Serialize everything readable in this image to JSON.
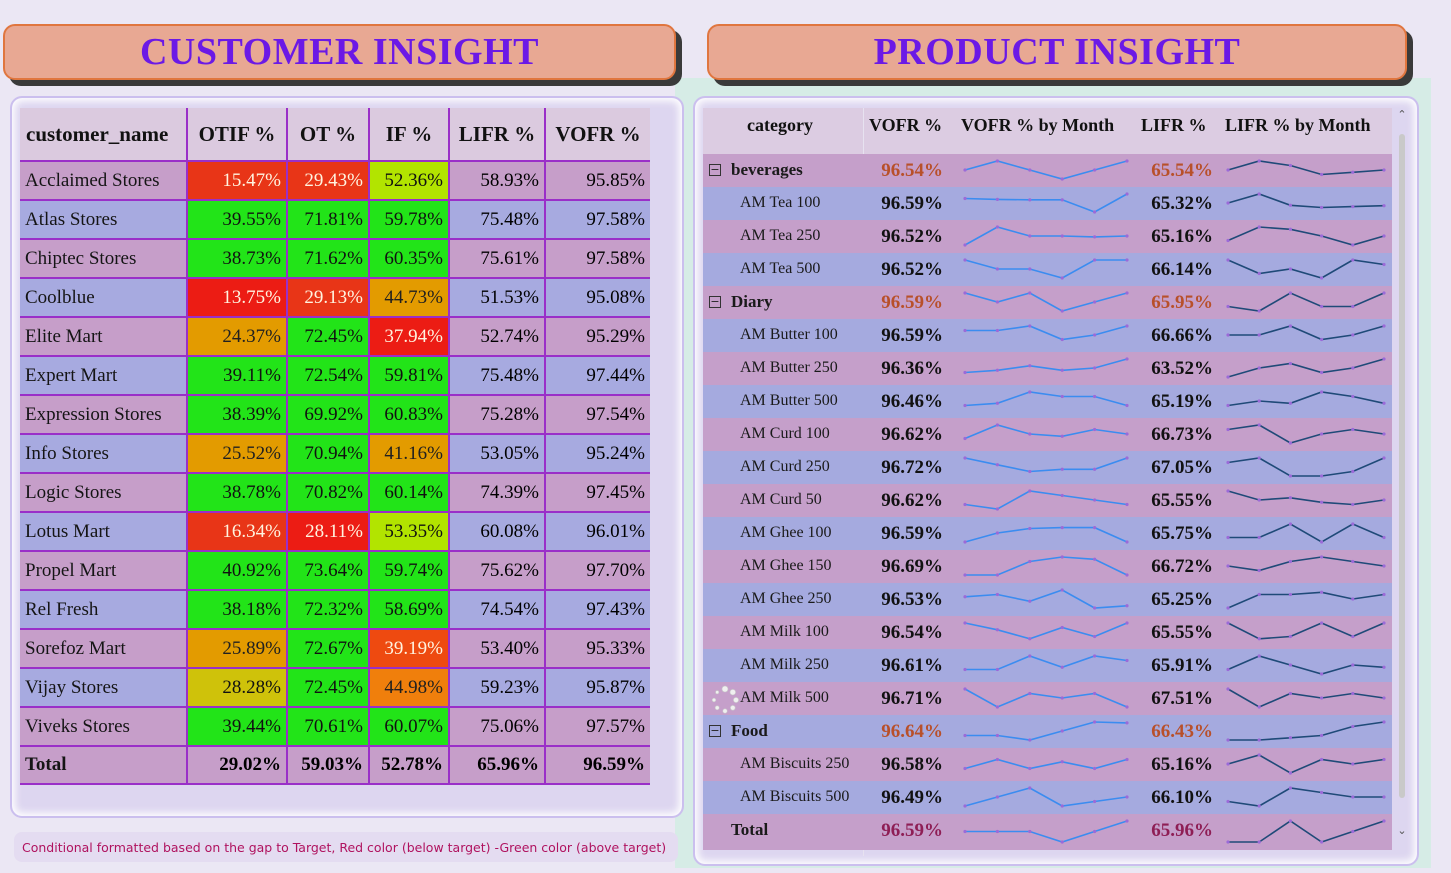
{
  "banners": {
    "customer": "CUSTOMER INSIGHT",
    "product": "PRODUCT INSIGHT"
  },
  "customer_table": {
    "headers": [
      "customer_name",
      "OTIF %",
      "OT %",
      "IF %",
      "LIFR %",
      "VOFR %"
    ],
    "rows": [
      {
        "name": "Acclaimed Stores",
        "otif": "15.47%",
        "ot": "29.43%",
        "if": "52.36%",
        "lifr": "58.93%",
        "vofr": "95.85%"
      },
      {
        "name": "Atlas Stores",
        "otif": "39.55%",
        "ot": "71.81%",
        "if": "59.78%",
        "lifr": "75.48%",
        "vofr": "97.58%"
      },
      {
        "name": "Chiptec Stores",
        "otif": "38.73%",
        "ot": "71.62%",
        "if": "60.35%",
        "lifr": "75.61%",
        "vofr": "97.58%"
      },
      {
        "name": "Coolblue",
        "otif": "13.75%",
        "ot": "29.13%",
        "if": "44.73%",
        "lifr": "51.53%",
        "vofr": "95.08%"
      },
      {
        "name": "Elite Mart",
        "otif": "24.37%",
        "ot": "72.45%",
        "if": "37.94%",
        "lifr": "52.74%",
        "vofr": "95.29%"
      },
      {
        "name": "Expert Mart",
        "otif": "39.11%",
        "ot": "72.54%",
        "if": "59.81%",
        "lifr": "75.48%",
        "vofr": "97.44%"
      },
      {
        "name": "Expression Stores",
        "otif": "38.39%",
        "ot": "69.92%",
        "if": "60.83%",
        "lifr": "75.28%",
        "vofr": "97.54%"
      },
      {
        "name": "Info Stores",
        "otif": "25.52%",
        "ot": "70.94%",
        "if": "41.16%",
        "lifr": "53.05%",
        "vofr": "95.24%"
      },
      {
        "name": "Logic Stores",
        "otif": "38.78%",
        "ot": "70.82%",
        "if": "60.14%",
        "lifr": "74.39%",
        "vofr": "97.45%"
      },
      {
        "name": "Lotus Mart",
        "otif": "16.34%",
        "ot": "28.11%",
        "if": "53.35%",
        "lifr": "60.08%",
        "vofr": "96.01%"
      },
      {
        "name": "Propel Mart",
        "otif": "40.92%",
        "ot": "73.64%",
        "if": "59.74%",
        "lifr": "75.62%",
        "vofr": "97.70%"
      },
      {
        "name": "Rel Fresh",
        "otif": "38.18%",
        "ot": "72.32%",
        "if": "58.69%",
        "lifr": "74.54%",
        "vofr": "97.43%"
      },
      {
        "name": "Sorefoz Mart",
        "otif": "25.89%",
        "ot": "72.67%",
        "if": "39.19%",
        "lifr": "53.40%",
        "vofr": "95.33%"
      },
      {
        "name": "Vijay Stores",
        "otif": "28.28%",
        "ot": "72.45%",
        "if": "44.98%",
        "lifr": "59.23%",
        "vofr": "95.87%"
      },
      {
        "name": "Viveks Stores",
        "otif": "39.44%",
        "ot": "70.61%",
        "if": "60.07%",
        "lifr": "75.06%",
        "vofr": "97.57%"
      }
    ],
    "total": {
      "name": "Total",
      "otif": "29.02%",
      "ot": "59.03%",
      "if": "52.78%",
      "lifr": "65.96%",
      "vofr": "96.59%"
    }
  },
  "footnote": "Conditional formatted based on the gap to Target, Red color (below target) -Green color (above target)",
  "product_matrix": {
    "headers": [
      "category",
      "VOFR %",
      "VOFR % by Month",
      "LIFR %",
      "LIFR % by Month"
    ],
    "rows": [
      {
        "type": "cat",
        "label": "beverages",
        "vofr": "96.54%",
        "lifr": "65.54%",
        "sv": [
          3,
          5,
          3,
          1,
          3,
          5
        ],
        "sl": [
          3,
          5,
          4,
          2,
          2.5,
          3
        ]
      },
      {
        "type": "item",
        "label": "AM Tea 100",
        "vofr": "96.59%",
        "lifr": "65.32%",
        "sv": [
          4,
          3.8,
          3.7,
          3.7,
          1,
          5
        ],
        "sl": [
          3,
          5,
          2.5,
          2,
          2.2,
          2.4
        ]
      },
      {
        "type": "item",
        "label": "AM Tea 250",
        "vofr": "96.52%",
        "lifr": "65.16%",
        "sv": [
          1,
          5,
          3,
          3,
          2.8,
          3
        ],
        "sl": [
          2,
          5,
          4.5,
          3,
          1,
          3
        ]
      },
      {
        "type": "item",
        "label": "AM Tea 500",
        "vofr": "96.52%",
        "lifr": "66.14%",
        "sv": [
          5,
          3,
          3,
          1,
          5,
          5
        ],
        "sl": [
          5,
          2,
          3,
          1,
          5,
          4
        ]
      },
      {
        "type": "cat",
        "label": "Diary",
        "vofr": "96.59%",
        "lifr": "65.95%",
        "sv": [
          5,
          3,
          5,
          1,
          3,
          5
        ],
        "sl": [
          2,
          1,
          5,
          2,
          2,
          5
        ]
      },
      {
        "type": "item",
        "label": "AM Butter 100",
        "vofr": "96.59%",
        "lifr": "66.66%",
        "sv": [
          4,
          4,
          5,
          2,
          3,
          5
        ],
        "sl": [
          3,
          3,
          5,
          2,
          3,
          5
        ]
      },
      {
        "type": "item",
        "label": "AM Butter 250",
        "vofr": "96.36%",
        "lifr": "63.52%",
        "sv": [
          2,
          2.5,
          3.5,
          2.5,
          3,
          5
        ],
        "sl": [
          1,
          3,
          4,
          2,
          3,
          5
        ]
      },
      {
        "type": "item",
        "label": "AM Butter 500",
        "vofr": "96.46%",
        "lifr": "65.19%",
        "sv": [
          2,
          2.5,
          5,
          4,
          4,
          2
        ],
        "sl": [
          2,
          3,
          2.5,
          5,
          4,
          2.5
        ]
      },
      {
        "type": "item",
        "label": "AM Curd 100",
        "vofr": "96.62%",
        "lifr": "66.73%",
        "sv": [
          2,
          5,
          3,
          2.5,
          4,
          3
        ],
        "sl": [
          4,
          5,
          1,
          3,
          4,
          3
        ]
      },
      {
        "type": "item",
        "label": "AM Curd 250",
        "vofr": "96.72%",
        "lifr": "67.05%",
        "sv": [
          5,
          3.5,
          2,
          2.5,
          2.5,
          5
        ],
        "sl": [
          4,
          5,
          1,
          1,
          2,
          5
        ]
      },
      {
        "type": "item",
        "label": "AM Curd 50",
        "vofr": "96.62%",
        "lifr": "65.55%",
        "sv": [
          2,
          1,
          5,
          4,
          3,
          2
        ],
        "sl": [
          5,
          3,
          3.5,
          2.5,
          2,
          3
        ]
      },
      {
        "type": "item",
        "label": "AM Ghee 100",
        "vofr": "96.59%",
        "lifr": "65.75%",
        "sv": [
          1,
          3,
          4,
          4.2,
          4.2,
          1
        ],
        "sl": [
          2,
          2,
          5,
          1,
          5,
          2
        ]
      },
      {
        "type": "item",
        "label": "AM Ghee 150",
        "vofr": "96.69%",
        "lifr": "66.72%",
        "sv": [
          1,
          1,
          4,
          5,
          4.5,
          1
        ],
        "sl": [
          3,
          2,
          4,
          5,
          4,
          3
        ]
      },
      {
        "type": "item",
        "label": "AM Ghee 250",
        "vofr": "96.53%",
        "lifr": "65.25%",
        "sv": [
          3.5,
          4,
          2.5,
          5,
          1,
          1.5
        ],
        "sl": [
          1,
          4,
          4,
          4.5,
          3,
          4
        ]
      },
      {
        "type": "item",
        "label": "AM Milk 100",
        "vofr": "96.54%",
        "lifr": "65.55%",
        "sv": [
          5,
          3.5,
          1.5,
          4,
          2,
          5
        ],
        "sl": [
          5,
          1.5,
          2,
          5,
          2,
          5
        ]
      },
      {
        "type": "item",
        "label": "AM Milk 250",
        "vofr": "96.61%",
        "lifr": "65.91%",
        "sv": [
          2,
          2,
          5,
          2.5,
          5,
          4
        ],
        "sl": [
          2,
          5,
          3,
          1,
          3,
          2.5
        ]
      },
      {
        "type": "item",
        "label": "AM Milk 500",
        "vofr": "96.71%",
        "lifr": "67.51%",
        "sv": [
          5,
          1,
          4,
          3,
          4,
          1
        ],
        "sl": [
          5,
          1,
          4,
          3,
          4,
          3
        ]
      },
      {
        "type": "cat",
        "label": "Food",
        "vofr": "96.64%",
        "lifr": "66.43%",
        "sv": [
          2,
          2,
          1,
          3,
          5,
          4.8
        ],
        "sl": [
          1,
          1,
          1.5,
          2,
          4,
          5
        ]
      },
      {
        "type": "item",
        "label": "AM Biscuits 250",
        "vofr": "96.58%",
        "lifr": "65.16%",
        "sv": [
          2,
          4,
          2,
          3.5,
          2,
          4
        ],
        "sl": [
          3,
          5,
          1,
          4,
          3,
          4
        ]
      },
      {
        "type": "item",
        "label": "AM Biscuits 500",
        "vofr": "96.49%",
        "lifr": "66.10%",
        "sv": [
          1,
          3,
          5,
          1,
          2,
          3
        ],
        "sl": [
          2,
          1,
          5,
          4,
          3,
          3
        ]
      },
      {
        "type": "total",
        "label": "Total",
        "vofr": "96.59%",
        "lifr": "65.96%",
        "sv": [
          3,
          3,
          3,
          1,
          3,
          5
        ],
        "sl": [
          1,
          1,
          5,
          1,
          3,
          5
        ]
      }
    ]
  },
  "colors": {
    "banner_text": "#6b19e6",
    "banner_fill": "#e8a893",
    "grid_line": "#9a2fc8",
    "spark_vofr": "#3b8cf0",
    "spark_lifr": "#1f4a78",
    "spark_marker": "#9b6ad8"
  }
}
